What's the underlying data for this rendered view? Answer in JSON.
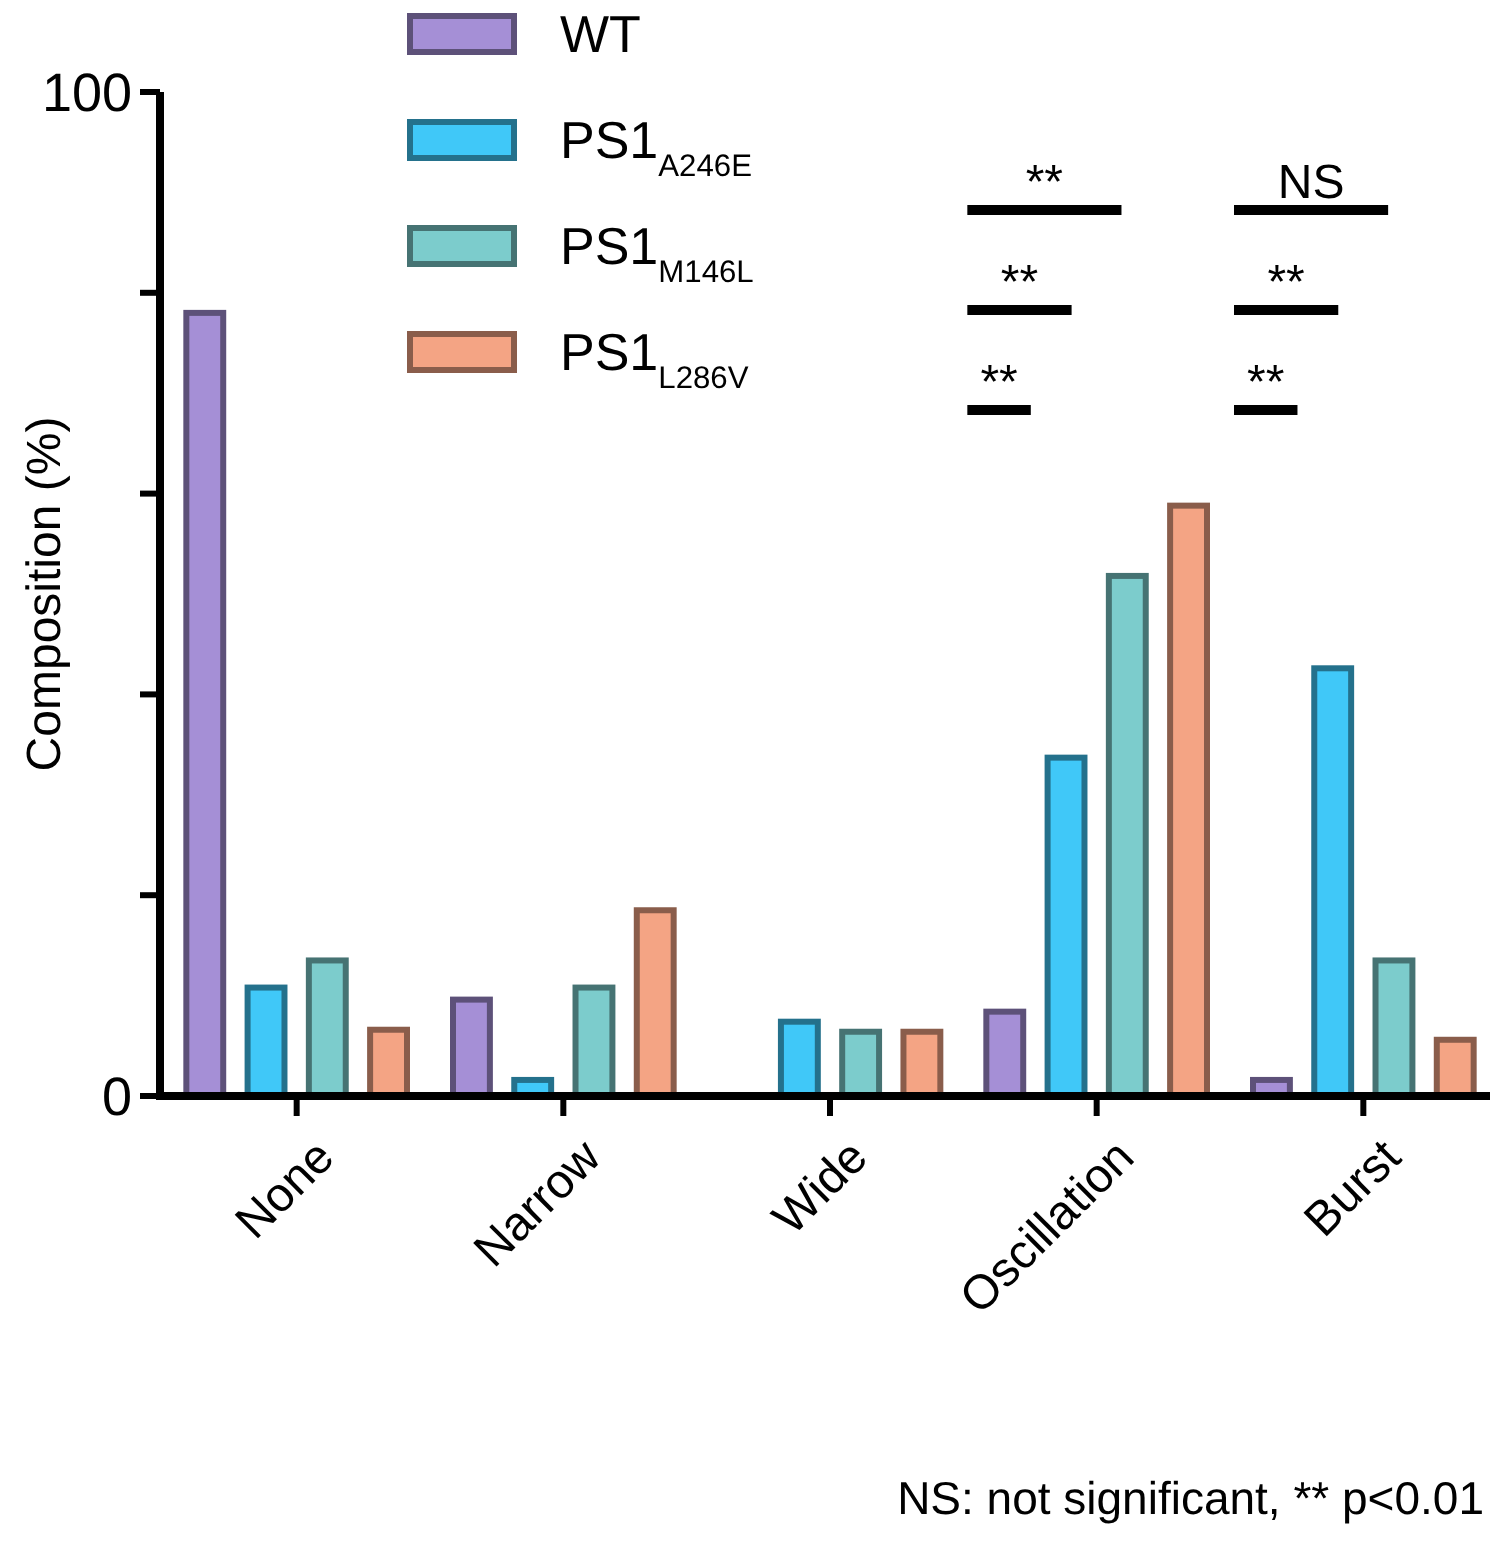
{
  "chart_data": {
    "type": "bar",
    "ylabel": "Composition (%)",
    "categories": [
      "None",
      "Narrow",
      "Wide",
      "Oscillation",
      "Burst"
    ],
    "series": [
      {
        "name": "WT",
        "color": "#a58fd6",
        "values": [
          78,
          9.6,
          0,
          8.4,
          1.6
        ]
      },
      {
        "name": "PS1$_{A246E}$",
        "color": "#40c8f8",
        "values": [
          10.8,
          1.6,
          7.4,
          33.7,
          42.6
        ]
      },
      {
        "name": "PS1$_{M146L}$",
        "color": "#7ccccc",
        "values": [
          13.5,
          10.8,
          6.4,
          51.8,
          13.5
        ]
      },
      {
        "name": "PS1$_{L286V}$",
        "color": "#f4a484",
        "values": [
          6.6,
          18.5,
          6.4,
          58.8,
          5.6
        ]
      }
    ],
    "ylim": [
      0,
      100
    ],
    "yticks": [
      0,
      {
        "value": 20,
        "label": null
      },
      {
        "value": 40,
        "label": null
      },
      {
        "value": 60,
        "label": null
      },
      {
        "value": 80,
        "label": null
      },
      100
    ],
    "grid": false,
    "legend": "top left",
    "annotations": [
      "**",
      "**",
      "**",
      "NS",
      "**",
      "**",
      "NS: not significant, ** p<0.01"
    ]
  }
}
